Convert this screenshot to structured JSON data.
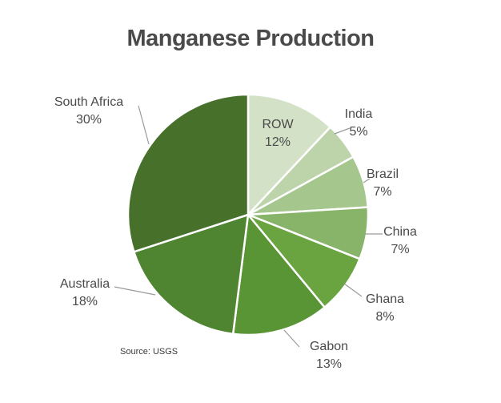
{
  "chart_data": {
    "type": "pie",
    "title": "Manganese Production",
    "source": "Source: USGS",
    "slices": [
      {
        "label": "ROW",
        "value_label": "12%",
        "value": 12,
        "color": "#d3e2c6"
      },
      {
        "label": "India",
        "value_label": "5%",
        "value": 5,
        "color": "#bdd4ab"
      },
      {
        "label": "Brazil",
        "value_label": "7%",
        "value": 7,
        "color": "#a5c68c"
      },
      {
        "label": "China",
        "value_label": "7%",
        "value": 7,
        "color": "#88b46a"
      },
      {
        "label": "Ghana",
        "value_label": "8%",
        "value": 8,
        "color": "#6aa441"
      },
      {
        "label": "Gabon",
        "value_label": "13%",
        "value": 13,
        "color": "#5a9535"
      },
      {
        "label": "Australia",
        "value_label": "18%",
        "value": 18,
        "color": "#4f8431"
      },
      {
        "label": "South Africa",
        "value_label": "30%",
        "value": 30,
        "color": "#47702b"
      }
    ]
  }
}
